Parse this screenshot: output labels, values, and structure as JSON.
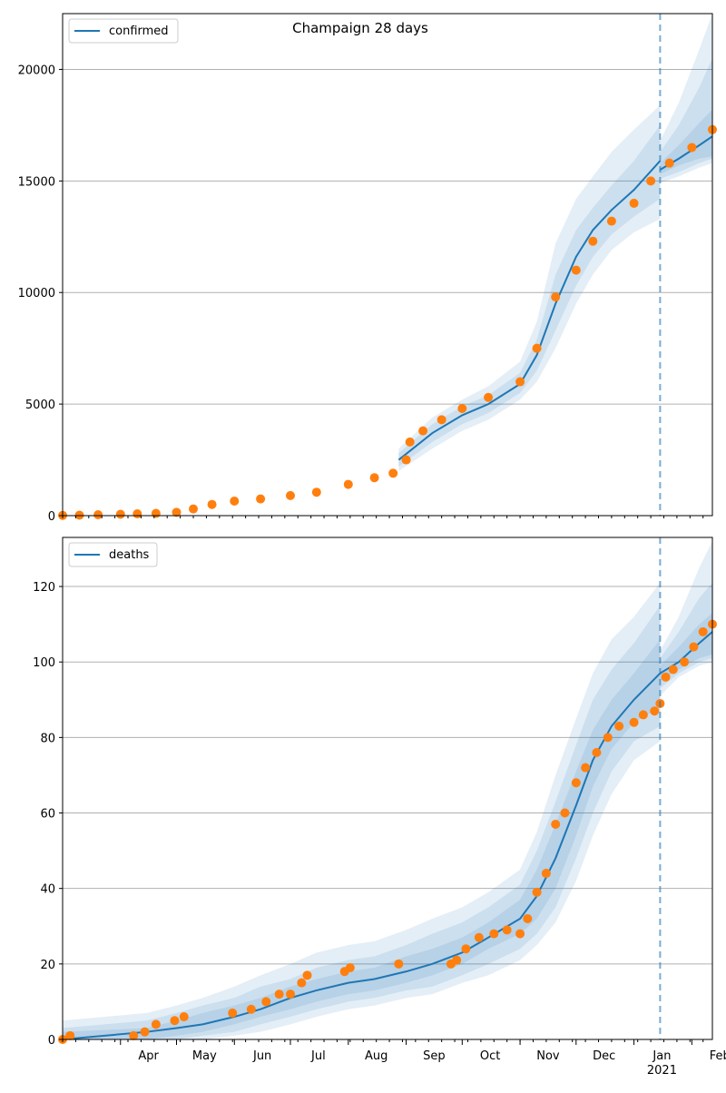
{
  "chart_data": [
    {
      "type": "line",
      "title": "Champaign 28 days",
      "xlabel": "",
      "ylabel": "",
      "ylim": [
        0,
        22500
      ],
      "yticks": [
        0,
        5000,
        10000,
        15000,
        20000
      ],
      "grid": "horizontal",
      "legend": {
        "placement": "top-left",
        "label": "confirmed"
      },
      "x_axis": {
        "range": [
          "2020-03-01",
          "2021-02-12"
        ],
        "tick_labels_visible": false
      },
      "vline_date": "2021-01-15",
      "colors": {
        "model": "#1f77b4",
        "observed": "#ff7f0e",
        "band": "#1f77b4",
        "grid": "#b0b0b0"
      },
      "series": [
        {
          "name": "confirmed",
          "kind": "model-median",
          "x": [
            "2020-08-28",
            "2020-09-15",
            "2020-10-01",
            "2020-10-15",
            "2020-11-01",
            "2020-11-10",
            "2020-11-20",
            "2020-12-01",
            "2020-12-10",
            "2020-12-20",
            "2021-01-01",
            "2021-01-15"
          ],
          "values": [
            2500,
            3700,
            4500,
            5000,
            5900,
            7200,
            9500,
            11600,
            12800,
            13700,
            14600,
            15900
          ],
          "bands": [
            {
              "lower": [
                2200,
                3300,
                4100,
                4600,
                5500,
                6500,
                8300,
                10300,
                11600,
                12600,
                13400,
                14200
              ],
              "upper": [
                2800,
                4100,
                4900,
                5400,
                6400,
                7900,
                10800,
                12800,
                13800,
                14800,
                15900,
                17500
              ]
            },
            {
              "lower": [
                2000,
                3000,
                3800,
                4300,
                5200,
                6000,
                7500,
                9500,
                10800,
                11900,
                12700,
                13300
              ],
              "upper": [
                3000,
                4400,
                5200,
                5800,
                6900,
                8700,
                12200,
                14200,
                15200,
                16300,
                17300,
                18400
              ]
            }
          ]
        },
        {
          "name": "",
          "kind": "forecast-median",
          "x": [
            "2021-01-15",
            "2021-01-25",
            "2021-02-05",
            "2021-02-12"
          ],
          "values": [
            15500,
            16000,
            16600,
            17000
          ],
          "bands": [
            {
              "lower": [
                15300,
                15700,
                16000,
                16100
              ],
              "upper": [
                15800,
                16600,
                17600,
                18200
              ]
            },
            {
              "lower": [
                15100,
                15400,
                15800,
                16000
              ],
              "upper": [
                16300,
                17500,
                19200,
                20500
              ]
            },
            {
              "lower": [
                14900,
                15200,
                15600,
                15800
              ],
              "upper": [
                16800,
                18500,
                20900,
                22500
              ]
            }
          ]
        },
        {
          "name": "",
          "kind": "observed",
          "x": [
            "2020-03-01",
            "2020-03-10",
            "2020-03-20",
            "2020-04-01",
            "2020-04-10",
            "2020-04-20",
            "2020-05-01",
            "2020-05-10",
            "2020-05-20",
            "2020-06-01",
            "2020-06-15",
            "2020-07-01",
            "2020-07-15",
            "2020-08-01",
            "2020-08-15",
            "2020-08-25",
            "2020-09-01",
            "2020-09-03",
            "2020-09-10",
            "2020-09-20",
            "2020-10-01",
            "2020-10-15",
            "2020-11-01",
            "2020-11-10",
            "2020-11-20",
            "2020-12-01",
            "2020-12-10",
            "2020-12-20",
            "2021-01-01",
            "2021-01-10",
            "2021-01-20",
            "2021-02-01",
            "2021-02-12"
          ],
          "values": [
            10,
            20,
            40,
            60,
            80,
            100,
            150,
            300,
            500,
            650,
            750,
            900,
            1050,
            1400,
            1700,
            1900,
            2500,
            3300,
            3800,
            4300,
            4800,
            5300,
            6000,
            7500,
            9800,
            11000,
            12300,
            13200,
            14000,
            15000,
            15800,
            16500,
            17300
          ]
        }
      ]
    },
    {
      "type": "line",
      "title": "",
      "xlabel": "",
      "ylabel": "",
      "ylim": [
        0,
        133
      ],
      "yticks": [
        0,
        20,
        40,
        60,
        80,
        100,
        120
      ],
      "grid": "horizontal",
      "legend": {
        "placement": "top-left",
        "label": "deaths"
      },
      "x_axis": {
        "range": [
          "2020-03-01",
          "2021-02-12"
        ],
        "tick_labels": [
          "Apr",
          "May",
          "Jun",
          "Jul",
          "Aug",
          "Sep",
          "Oct",
          "Nov",
          "Dec",
          "Jan",
          "Feb"
        ],
        "tick_dates": [
          "2020-04-01",
          "2020-05-01",
          "2020-06-01",
          "2020-07-01",
          "2020-08-01",
          "2020-09-01",
          "2020-10-01",
          "2020-11-01",
          "2020-12-01",
          "2021-01-01",
          "2021-02-01"
        ],
        "year_label": "2021"
      },
      "vline_date": "2021-01-15",
      "colors": {
        "model": "#1f77b4",
        "observed": "#ff7f0e",
        "band": "#1f77b4",
        "grid": "#b0b0b0"
      },
      "series": [
        {
          "name": "deaths",
          "kind": "model-median",
          "x": [
            "2020-03-01",
            "2020-04-15",
            "2020-05-01",
            "2020-05-15",
            "2020-06-01",
            "2020-06-15",
            "2020-07-01",
            "2020-07-15",
            "2020-08-01",
            "2020-08-15",
            "2020-09-01",
            "2020-09-15",
            "2020-10-01",
            "2020-10-15",
            "2020-11-01",
            "2020-11-10",
            "2020-11-20",
            "2020-12-01",
            "2020-12-10",
            "2020-12-20",
            "2021-01-01",
            "2021-01-15"
          ],
          "values": [
            0,
            2,
            3,
            4,
            6,
            8,
            11,
            13,
            15,
            16,
            18,
            20,
            23,
            27,
            32,
            38,
            48,
            62,
            74,
            83,
            90,
            97
          ],
          "bands": [
            {
              "lower": [
                0,
                0,
                1,
                2,
                4,
                6,
                8,
                10,
                12,
                13,
                15,
                17,
                20,
                24,
                28,
                32,
                40,
                54,
                67,
                77,
                84,
                88
              ],
              "upper": [
                2,
                3,
                5,
                7,
                9,
                11,
                14,
                16,
                18,
                19,
                22,
                24,
                27,
                31,
                37,
                45,
                57,
                71,
                82,
                90,
                97,
                106
              ]
            },
            {
              "lower": [
                0,
                0,
                0,
                1,
                2,
                4,
                6,
                8,
                10,
                11,
                13,
                14,
                17,
                20,
                24,
                28,
                35,
                48,
                60,
                71,
                79,
                83
              ],
              "upper": [
                3,
                5,
                7,
                9,
                11,
                14,
                16,
                19,
                21,
                22,
                25,
                28,
                31,
                35,
                41,
                50,
                63,
                78,
                90,
                98,
                105,
                115
              ]
            },
            {
              "lower": [
                0,
                0,
                0,
                0,
                1,
                2,
                4,
                6,
                8,
                9,
                11,
                12,
                15,
                17,
                21,
                25,
                31,
                42,
                54,
                65,
                74,
                79
              ],
              "upper": [
                5,
                7,
                9,
                11,
                14,
                17,
                20,
                23,
                25,
                26,
                29,
                32,
                35,
                39,
                45,
                55,
                70,
                85,
                97,
                106,
                112,
                121
              ]
            }
          ]
        },
        {
          "name": "",
          "kind": "forecast-median",
          "x": [
            "2021-01-15",
            "2021-01-25",
            "2021-02-05",
            "2021-02-12"
          ],
          "values": [
            97,
            100,
            105,
            108
          ],
          "bands": [
            {
              "lower": [
                95,
                98,
                101,
                102
              ],
              "upper": [
                99,
                104,
                110,
                113
              ]
            },
            {
              "lower": [
                93,
                97,
                100,
                101
              ],
              "upper": [
                101,
                108,
                117,
                121
              ]
            },
            {
              "lower": [
                91,
                96,
                99,
                100
              ],
              "upper": [
                103,
                112,
                125,
                132
              ]
            }
          ]
        },
        {
          "name": "",
          "kind": "observed",
          "x": [
            "2020-03-01",
            "2020-03-05",
            "2020-04-08",
            "2020-04-14",
            "2020-04-20",
            "2020-04-30",
            "2020-05-05",
            "2020-05-31",
            "2020-06-10",
            "2020-06-18",
            "2020-06-25",
            "2020-07-01",
            "2020-07-07",
            "2020-07-10",
            "2020-07-30",
            "2020-08-02",
            "2020-08-28",
            "2020-09-25",
            "2020-09-28",
            "2020-10-03",
            "2020-10-10",
            "2020-10-18",
            "2020-10-25",
            "2020-11-01",
            "2020-11-05",
            "2020-11-10",
            "2020-11-15",
            "2020-11-20",
            "2020-11-25",
            "2020-12-01",
            "2020-12-06",
            "2020-12-12",
            "2020-12-18",
            "2020-12-24",
            "2021-01-01",
            "2021-01-06",
            "2021-01-12",
            "2021-01-15",
            "2021-01-18",
            "2021-01-22",
            "2021-01-28",
            "2021-02-02",
            "2021-02-07",
            "2021-02-12"
          ],
          "values": [
            0,
            1,
            1,
            2,
            4,
            5,
            6,
            7,
            8,
            10,
            12,
            12,
            15,
            17,
            18,
            19,
            20,
            20,
            21,
            24,
            27,
            28,
            29,
            28,
            32,
            39,
            44,
            57,
            60,
            68,
            72,
            76,
            80,
            83,
            84,
            86,
            87,
            89,
            96,
            98,
            100,
            104,
            108,
            110
          ]
        }
      ]
    }
  ]
}
